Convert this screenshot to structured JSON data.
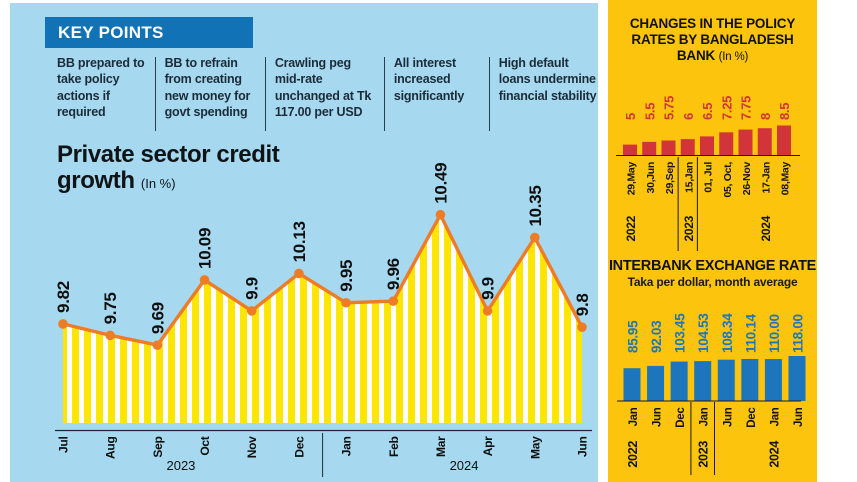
{
  "colors": {
    "panel_blue": "#a6d9ef",
    "band_blue": "#1173b5",
    "stripe_yellow": "#ffe600",
    "line_orange": "#ee7c26",
    "panel_yellow": "#fcc40d",
    "bar_red": "#d23539",
    "bar_blue": "#1d76bb"
  },
  "key_points": {
    "header": "KEY POINTS",
    "items": [
      "BB prepared to take policy actions if required",
      "BB to refrain from creating new money for govt spending",
      "Crawling peg mid-rate unchanged at Tk 117.00 per USD",
      "All interest increased significantly",
      "High default loans undermine financial stability"
    ]
  },
  "chart_data": [
    {
      "id": "private_sector_credit_growth",
      "type": "line",
      "title": "Private sector credit growth",
      "unit_label": "(In %)",
      "categories": [
        "Jul",
        "Aug",
        "Sep",
        "Oct",
        "Nov",
        "Dec",
        "Jan",
        "Feb",
        "Mar",
        "Apr",
        "May",
        "Jun"
      ],
      "values": [
        9.82,
        9.75,
        9.69,
        10.09,
        9.9,
        10.13,
        9.95,
        9.96,
        10.49,
        9.9,
        10.35,
        9.8
      ],
      "value_labels": [
        "9.82",
        "9.75",
        "9.69",
        "10.09",
        "9.9",
        "10.13",
        "9.95",
        "9.96",
        "10.49",
        "9.9",
        "10.35",
        "9.8"
      ],
      "year_groups": [
        {
          "label": "2023",
          "span": [
            0,
            5
          ]
        },
        {
          "label": "2024",
          "span": [
            6,
            11
          ]
        }
      ],
      "ylim": [
        9.2,
        10.6
      ],
      "grid": false,
      "style": "orange line with dot markers over yellow-white striped area fill"
    },
    {
      "id": "policy_rates",
      "type": "bar",
      "title_lines": [
        "CHANGES IN THE POLICY",
        "RATES BY BANGLADESH",
        "BANK"
      ],
      "unit_label": "(In %)",
      "categories": [
        "29,May",
        "30,Jun",
        "29,Sep",
        "15,Jan",
        "01, Jul",
        "05, Oct,",
        "26-Nov",
        "17-Jan",
        "08,May"
      ],
      "values": [
        5,
        5.5,
        5.75,
        6,
        6.5,
        7.25,
        7.75,
        8,
        8.5
      ],
      "value_labels": [
        "5",
        "5.5",
        "5.75",
        "6",
        "6.5",
        "7.25",
        "7.75",
        "8",
        "8.5"
      ],
      "years": [
        {
          "label": "2022",
          "at": 0
        },
        {
          "label": "2023",
          "at": 3
        },
        {
          "label": "2024",
          "at": 7
        }
      ],
      "separators_after": [
        2,
        3
      ]
    },
    {
      "id": "interbank_exchange_rate",
      "type": "bar",
      "title": "INTERBANK EXCHANGE RATE",
      "subtitle": "Taka per dollar, month average",
      "categories": [
        "Jan",
        "Jun",
        "Dec",
        "Jan",
        "Jun",
        "Dec",
        "Jan",
        "Jun"
      ],
      "values": [
        85.95,
        92.03,
        103.45,
        104.53,
        108.34,
        110.14,
        110.0,
        118.0
      ],
      "value_labels": [
        "85.95",
        "92.03",
        "103.45",
        "104.53",
        "108.34",
        "110.14",
        "110.00",
        "118.00"
      ],
      "years": [
        {
          "label": "2022",
          "at": 0
        },
        {
          "label": "2023",
          "at": 3
        },
        {
          "label": "2024",
          "at": 6
        }
      ],
      "separators_after": [
        2,
        3
      ]
    }
  ]
}
